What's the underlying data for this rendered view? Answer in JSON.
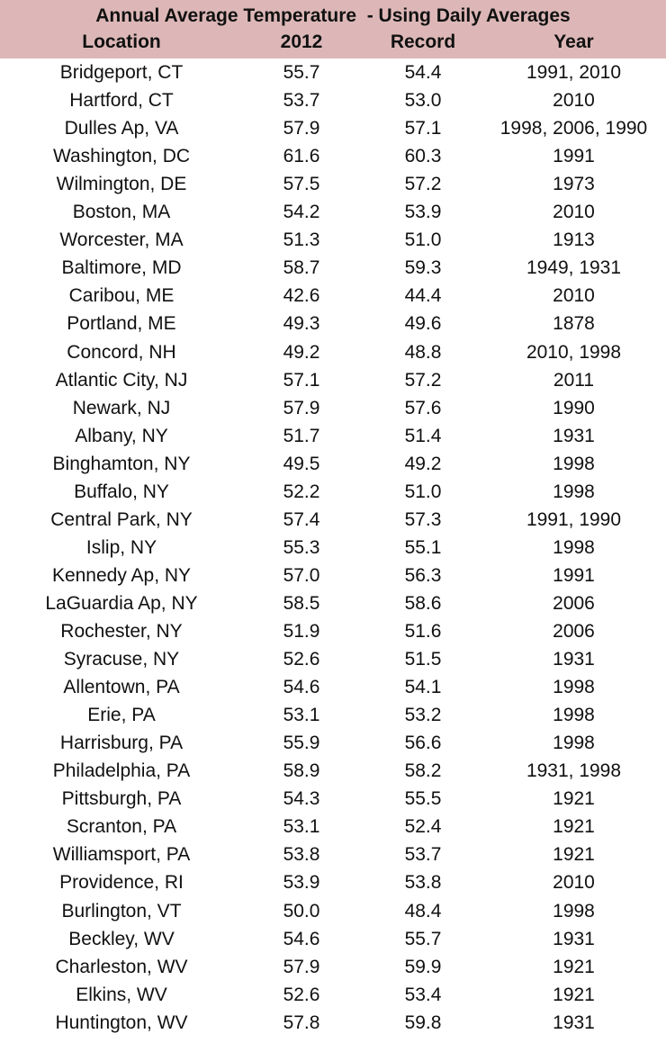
{
  "title": "Annual Average Temperature  - Using Daily Averages",
  "columns": {
    "location": "Location",
    "y2012": "2012",
    "record": "Record",
    "year": "Year"
  },
  "rows": [
    {
      "location": "Bridgeport, CT",
      "y2012": "55.7",
      "record": "54.4",
      "year": "1991, 2010"
    },
    {
      "location": "Hartford, CT",
      "y2012": "53.7",
      "record": "53.0",
      "year": "2010"
    },
    {
      "location": "Dulles Ap, VA",
      "y2012": "57.9",
      "record": "57.1",
      "year": "1998, 2006, 1990"
    },
    {
      "location": "Washington, DC",
      "y2012": "61.6",
      "record": "60.3",
      "year": "1991"
    },
    {
      "location": "Wilmington, DE",
      "y2012": "57.5",
      "record": "57.2",
      "year": "1973"
    },
    {
      "location": "Boston, MA",
      "y2012": "54.2",
      "record": "53.9",
      "year": "2010"
    },
    {
      "location": "Worcester, MA",
      "y2012": "51.3",
      "record": "51.0",
      "year": "1913"
    },
    {
      "location": "Baltimore, MD",
      "y2012": "58.7",
      "record": "59.3",
      "year": "1949, 1931"
    },
    {
      "location": "Caribou, ME",
      "y2012": "42.6",
      "record": "44.4",
      "year": "2010"
    },
    {
      "location": "Portland, ME",
      "y2012": "49.3",
      "record": "49.6",
      "year": "1878"
    },
    {
      "location": "Concord, NH",
      "y2012": "49.2",
      "record": "48.8",
      "year": "2010, 1998"
    },
    {
      "location": "Atlantic City, NJ",
      "y2012": "57.1",
      "record": "57.2",
      "year": "2011"
    },
    {
      "location": "Newark, NJ",
      "y2012": "57.9",
      "record": "57.6",
      "year": "1990"
    },
    {
      "location": "Albany, NY",
      "y2012": "51.7",
      "record": "51.4",
      "year": "1931"
    },
    {
      "location": "Binghamton, NY",
      "y2012": "49.5",
      "record": "49.2",
      "year": "1998"
    },
    {
      "location": "Buffalo, NY",
      "y2012": "52.2",
      "record": "51.0",
      "year": "1998"
    },
    {
      "location": "Central Park, NY",
      "y2012": "57.4",
      "record": "57.3",
      "year": "1991, 1990"
    },
    {
      "location": "Islip, NY",
      "y2012": "55.3",
      "record": "55.1",
      "year": "1998"
    },
    {
      "location": "Kennedy Ap, NY",
      "y2012": "57.0",
      "record": "56.3",
      "year": "1991"
    },
    {
      "location": "LaGuardia Ap, NY",
      "y2012": "58.5",
      "record": "58.6",
      "year": "2006"
    },
    {
      "location": "Rochester, NY",
      "y2012": "51.9",
      "record": "51.6",
      "year": "2006"
    },
    {
      "location": "Syracuse, NY",
      "y2012": "52.6",
      "record": "51.5",
      "year": "1931"
    },
    {
      "location": "Allentown, PA",
      "y2012": "54.6",
      "record": "54.1",
      "year": "1998"
    },
    {
      "location": "Erie, PA",
      "y2012": "53.1",
      "record": "53.2",
      "year": "1998"
    },
    {
      "location": "Harrisburg, PA",
      "y2012": "55.9",
      "record": "56.6",
      "year": "1998"
    },
    {
      "location": "Philadelphia, PA",
      "y2012": "58.9",
      "record": "58.2",
      "year": "1931, 1998"
    },
    {
      "location": "Pittsburgh, PA",
      "y2012": "54.3",
      "record": "55.5",
      "year": "1921"
    },
    {
      "location": "Scranton, PA",
      "y2012": "53.1",
      "record": "52.4",
      "year": "1921"
    },
    {
      "location": "Williamsport, PA",
      "y2012": "53.8",
      "record": "53.7",
      "year": "1921"
    },
    {
      "location": "Providence, RI",
      "y2012": "53.9",
      "record": "53.8",
      "year": "2010"
    },
    {
      "location": "Burlington, VT",
      "y2012": "50.0",
      "record": "48.4",
      "year": "1998"
    },
    {
      "location": "Beckley, WV",
      "y2012": "54.6",
      "record": "55.7",
      "year": "1931"
    },
    {
      "location": "Charleston, WV",
      "y2012": "57.9",
      "record": "59.9",
      "year": "1921"
    },
    {
      "location": "Elkins, WV",
      "y2012": "52.6",
      "record": "53.4",
      "year": "1921"
    },
    {
      "location": "Huntington, WV",
      "y2012": "57.8",
      "record": "59.8",
      "year": "1931"
    }
  ],
  "colors": {
    "header_background": "#ddb7b7",
    "text": "#111111"
  }
}
